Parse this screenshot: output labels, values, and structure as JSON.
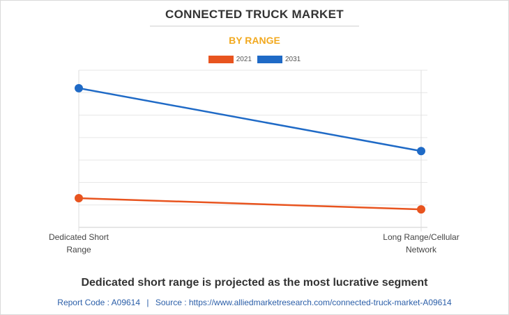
{
  "title": "CONNECTED TRUCK MARKET",
  "subtitle": "BY RANGE",
  "headline": "Dedicated short range is projected as the most lucrative segment",
  "footer": {
    "report_code": "Report Code : A09614",
    "separator": "|",
    "source": "Source : https://www.alliedmarketresearch.com/connected-truck-market-A09614"
  },
  "colors": {
    "series_2021": "#e8541f",
    "series_2031": "#1f6ac6",
    "subtitle": "#f2a91f",
    "grid": "#e6e6e6"
  },
  "chart_data": {
    "type": "line",
    "categories": [
      [
        "Dedicated Short",
        "Range"
      ],
      [
        "Long Range/Cellular",
        "Network"
      ]
    ],
    "series": [
      {
        "name": "2021",
        "values": [
          1.3,
          0.8
        ]
      },
      {
        "name": "2031",
        "values": [
          6.2,
          3.4
        ]
      }
    ],
    "ylim": [
      0,
      7
    ],
    "grid": true,
    "legend": "top-center"
  }
}
